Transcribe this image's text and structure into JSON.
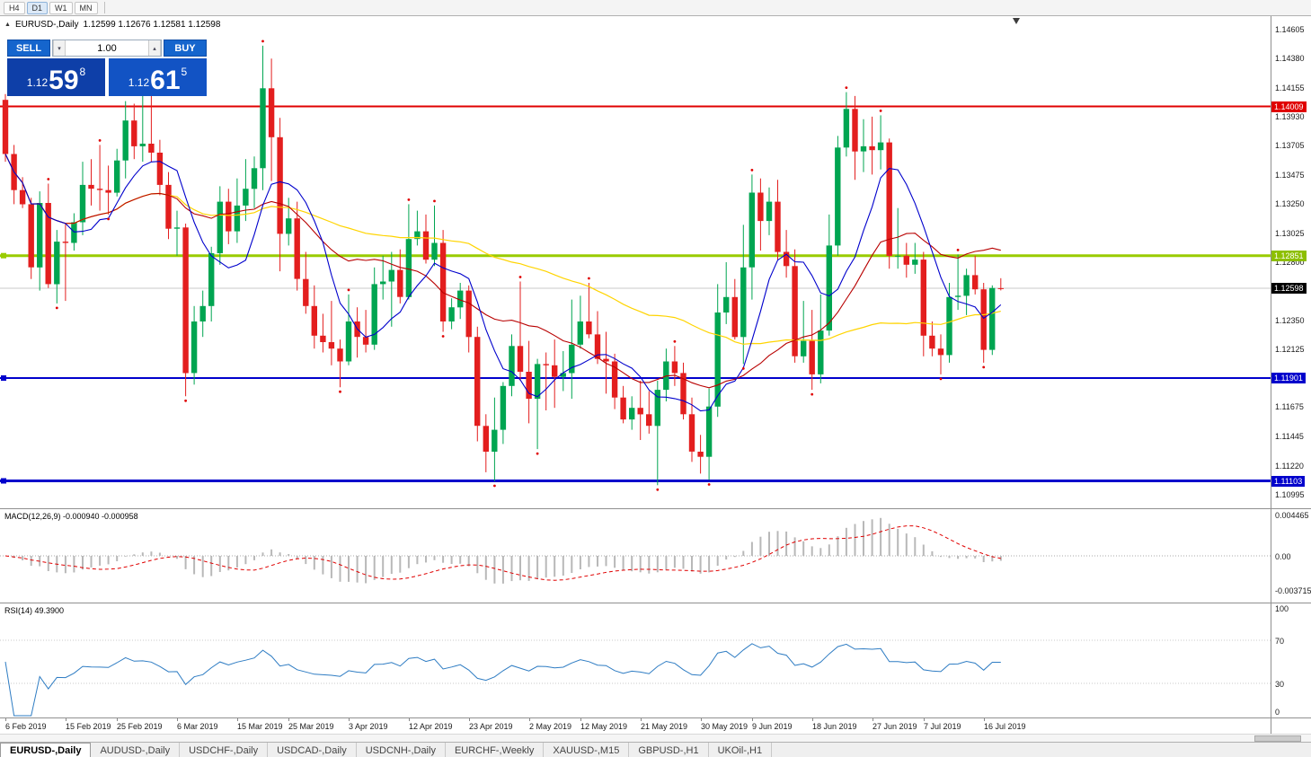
{
  "toolbar": {
    "timeframes": [
      "H4",
      "D1",
      "W1",
      "MN"
    ],
    "active_timeframe": "D1"
  },
  "chart_header": {
    "symbol_title": "EURUSD-,Daily",
    "ohlc": "1.12599 1.12676 1.12581 1.12598"
  },
  "trade_panel": {
    "sell_label": "SELL",
    "buy_label": "BUY",
    "volume": "1.00",
    "bid": {
      "big": "1.12",
      "pips": "59",
      "pt": "8"
    },
    "ask": {
      "big": "1.12",
      "pips": "61",
      "pt": "5"
    }
  },
  "chart": {
    "symbol": "EURUSD-",
    "timeframe": "Daily",
    "bull_color": "#00A551",
    "bear_color": "#E31E1E",
    "ma_fast_color": "#0000CC",
    "ma_mid_color": "#B80000",
    "ma_slow_color": "#FFD400",
    "fractal_color": "#E00000",
    "levels": [
      {
        "name": "resistance",
        "value": 1.14009,
        "label": "1.14009",
        "line_color": "#E00000",
        "tag_bg": "#E00000",
        "thickness": 2,
        "handle": false
      },
      {
        "name": "pivot-green",
        "value": 1.12851,
        "label": "1.12851",
        "line_color": "#99CC00",
        "tag_bg": "#8DBF00",
        "thickness": 3,
        "handle": true
      },
      {
        "name": "current-price",
        "value": 1.12598,
        "label": "1.12598",
        "line_color": "#C8C8C8",
        "tag_bg": "#000000",
        "thickness": 1,
        "handle": false
      },
      {
        "name": "support-1",
        "value": 1.11901,
        "label": "1.11901",
        "line_color": "#0000CC",
        "tag_bg": "#0000CC",
        "thickness": 2,
        "handle": true
      },
      {
        "name": "support-2",
        "value": 1.11103,
        "label": "1.11103",
        "line_color": "#0000CC",
        "tag_bg": "#0000CC",
        "thickness": 3,
        "handle": true
      }
    ],
    "y_ticks": [
      "1.14605",
      "1.14380",
      "1.14155",
      "1.13930",
      "1.13705",
      "1.13475",
      "1.13250",
      "1.13025",
      "1.12800",
      "1.12350",
      "1.12125",
      "1.11675",
      "1.11445",
      "1.11220",
      "1.10995"
    ],
    "candles": [
      [
        1.1406,
        1.14105,
        1.1358,
        1.1364
      ],
      [
        1.1364,
        1.1371,
        1.1325,
        1.1336
      ],
      [
        1.1336,
        1.1346,
        1.1322,
        1.1325
      ],
      [
        1.1325,
        1.133,
        1.1267,
        1.1276
      ],
      [
        1.1276,
        1.1335,
        1.1258,
        1.1326
      ],
      [
        1.1326,
        1.1341,
        1.126,
        1.1263
      ],
      [
        1.1263,
        1.1305,
        1.1248,
        1.1296
      ],
      [
        1.1296,
        1.131,
        1.125,
        1.1295
      ],
      [
        1.1295,
        1.1318,
        1.1289,
        1.1311
      ],
      [
        1.1311,
        1.1358,
        1.1301,
        1.134
      ],
      [
        1.134,
        1.136,
        1.1324,
        1.1337
      ],
      [
        1.1337,
        1.1371,
        1.132,
        1.1336
      ],
      [
        1.1336,
        1.1355,
        1.1317,
        1.1334
      ],
      [
        1.1334,
        1.1368,
        1.1331,
        1.1359
      ],
      [
        1.1359,
        1.1405,
        1.1345,
        1.139
      ],
      [
        1.139,
        1.1403,
        1.136,
        1.137
      ],
      [
        1.137,
        1.142,
        1.1358,
        1.1372
      ],
      [
        1.1372,
        1.141,
        1.1358,
        1.1365
      ],
      [
        1.1365,
        1.1375,
        1.1332,
        1.134
      ],
      [
        1.134,
        1.135,
        1.1298,
        1.1306
      ],
      [
        1.1306,
        1.132,
        1.1285,
        1.1307
      ],
      [
        1.1307,
        1.131,
        1.1176,
        1.1194
      ],
      [
        1.1194,
        1.1246,
        1.1185,
        1.1234
      ],
      [
        1.1234,
        1.1258,
        1.1222,
        1.1246
      ],
      [
        1.1246,
        1.1292,
        1.1234,
        1.1287
      ],
      [
        1.1287,
        1.1339,
        1.1278,
        1.1327
      ],
      [
        1.1327,
        1.1337,
        1.1294,
        1.1304
      ],
      [
        1.1304,
        1.1345,
        1.1295,
        1.1324
      ],
      [
        1.1324,
        1.136,
        1.1312,
        1.1337
      ],
      [
        1.1337,
        1.1362,
        1.1322,
        1.1353
      ],
      [
        1.1353,
        1.1448,
        1.1336,
        1.1415
      ],
      [
        1.1415,
        1.1438,
        1.1343,
        1.1377
      ],
      [
        1.1377,
        1.1392,
        1.1273,
        1.1302
      ],
      [
        1.1302,
        1.133,
        1.1293,
        1.1314
      ],
      [
        1.1314,
        1.1327,
        1.1258,
        1.1267
      ],
      [
        1.1267,
        1.1288,
        1.124,
        1.1246
      ],
      [
        1.1246,
        1.1262,
        1.1213,
        1.1223
      ],
      [
        1.1223,
        1.124,
        1.121,
        1.1218
      ],
      [
        1.1218,
        1.125,
        1.12,
        1.1213
      ],
      [
        1.1213,
        1.122,
        1.1183,
        1.1203
      ],
      [
        1.1203,
        1.1255,
        1.12,
        1.1234
      ],
      [
        1.1234,
        1.1245,
        1.1206,
        1.1222
      ],
      [
        1.1222,
        1.1243,
        1.121,
        1.1216
      ],
      [
        1.1216,
        1.1276,
        1.1212,
        1.1263
      ],
      [
        1.1263,
        1.1285,
        1.1251,
        1.1265
      ],
      [
        1.1265,
        1.1288,
        1.123,
        1.1274
      ],
      [
        1.1274,
        1.129,
        1.1248,
        1.1253
      ],
      [
        1.1253,
        1.1325,
        1.1251,
        1.1298
      ],
      [
        1.1298,
        1.132,
        1.1293,
        1.1304
      ],
      [
        1.1304,
        1.1317,
        1.1279,
        1.1282
      ],
      [
        1.1282,
        1.1324,
        1.1277,
        1.1295
      ],
      [
        1.1295,
        1.1305,
        1.1226,
        1.1234
      ],
      [
        1.1234,
        1.1252,
        1.1228,
        1.1245
      ],
      [
        1.1245,
        1.1264,
        1.1236,
        1.1258
      ],
      [
        1.1258,
        1.1262,
        1.121,
        1.1222
      ],
      [
        1.1222,
        1.123,
        1.1141,
        1.1153
      ],
      [
        1.1153,
        1.1162,
        1.1117,
        1.1133
      ],
      [
        1.1133,
        1.1175,
        1.111,
        1.115
      ],
      [
        1.115,
        1.1187,
        1.1139,
        1.1184
      ],
      [
        1.1184,
        1.1224,
        1.1176,
        1.1215
      ],
      [
        1.1215,
        1.1265,
        1.1188,
        1.1195
      ],
      [
        1.1195,
        1.1219,
        1.1155,
        1.1174
      ],
      [
        1.1174,
        1.1205,
        1.1135,
        1.1201
      ],
      [
        1.1201,
        1.121,
        1.1165,
        1.12
      ],
      [
        1.12,
        1.122,
        1.1167,
        1.1191
      ],
      [
        1.1191,
        1.1211,
        1.118,
        1.1194
      ],
      [
        1.1194,
        1.1251,
        1.1174,
        1.1216
      ],
      [
        1.1216,
        1.1254,
        1.1213,
        1.1234
      ],
      [
        1.1234,
        1.1264,
        1.1221,
        1.1224
      ],
      [
        1.1224,
        1.1242,
        1.1201,
        1.1205
      ],
      [
        1.1205,
        1.1226,
        1.1178,
        1.1203
      ],
      [
        1.1203,
        1.1209,
        1.1166,
        1.1175
      ],
      [
        1.1175,
        1.1184,
        1.1155,
        1.1158
      ],
      [
        1.1158,
        1.1176,
        1.115,
        1.1167
      ],
      [
        1.1167,
        1.1188,
        1.1142,
        1.1162
      ],
      [
        1.1162,
        1.118,
        1.1147,
        1.1153
      ],
      [
        1.1153,
        1.1188,
        1.1107,
        1.1181
      ],
      [
        1.1181,
        1.1213,
        1.1172,
        1.1203
      ],
      [
        1.1203,
        1.1215,
        1.1184,
        1.1194
      ],
      [
        1.1194,
        1.1202,
        1.1158,
        1.1162
      ],
      [
        1.1162,
        1.1175,
        1.1125,
        1.1133
      ],
      [
        1.1133,
        1.1146,
        1.1116,
        1.1129
      ],
      [
        1.1129,
        1.1182,
        1.1111,
        1.1168
      ],
      [
        1.1168,
        1.1263,
        1.116,
        1.1241
      ],
      [
        1.1241,
        1.128,
        1.1232,
        1.1253
      ],
      [
        1.1253,
        1.1267,
        1.122,
        1.1222
      ],
      [
        1.1222,
        1.1309,
        1.1201,
        1.1276
      ],
      [
        1.1276,
        1.1348,
        1.1251,
        1.1334
      ],
      [
        1.1334,
        1.1345,
        1.1289,
        1.1312
      ],
      [
        1.1312,
        1.1338,
        1.1301,
        1.1327
      ],
      [
        1.1327,
        1.1344,
        1.1282,
        1.1288
      ],
      [
        1.1288,
        1.1305,
        1.1268,
        1.1277
      ],
      [
        1.1277,
        1.129,
        1.1202,
        1.1207
      ],
      [
        1.1207,
        1.125,
        1.1202,
        1.1219
      ],
      [
        1.1219,
        1.1243,
        1.1181,
        1.1193
      ],
      [
        1.1193,
        1.1255,
        1.1186,
        1.1227
      ],
      [
        1.1227,
        1.1317,
        1.1223,
        1.1293
      ],
      [
        1.1293,
        1.1378,
        1.1285,
        1.1369
      ],
      [
        1.1369,
        1.1412,
        1.1362,
        1.1399
      ],
      [
        1.1399,
        1.1409,
        1.1344,
        1.1366
      ],
      [
        1.1366,
        1.1391,
        1.135,
        1.137
      ],
      [
        1.137,
        1.1393,
        1.1348,
        1.1367
      ],
      [
        1.1367,
        1.1394,
        1.1352,
        1.1373
      ],
      [
        1.1373,
        1.1376,
        1.1275,
        1.1285
      ],
      [
        1.1285,
        1.1322,
        1.1275,
        1.1285
      ],
      [
        1.1285,
        1.1295,
        1.1268,
        1.1278
      ],
      [
        1.1278,
        1.1295,
        1.1271,
        1.1282
      ],
      [
        1.1282,
        1.1288,
        1.1207,
        1.1223
      ],
      [
        1.1223,
        1.1234,
        1.1207,
        1.1213
      ],
      [
        1.1213,
        1.1224,
        1.1193,
        1.1208
      ],
      [
        1.1208,
        1.1264,
        1.1202,
        1.1253
      ],
      [
        1.1253,
        1.1286,
        1.1243,
        1.1254
      ],
      [
        1.1254,
        1.1275,
        1.1239,
        1.127
      ],
      [
        1.127,
        1.1285,
        1.1255,
        1.1259
      ],
      [
        1.1259,
        1.1264,
        1.1202,
        1.1212
      ],
      [
        1.1212,
        1.1262,
        1.1208,
        1.126
      ],
      [
        1.12599,
        1.12676,
        1.12581,
        1.12598
      ]
    ]
  },
  "macd": {
    "label": "MACD(12,26,9) -0.000940 -0.000958",
    "fast": 12,
    "slow": 26,
    "signal": 9,
    "axis_labels": [
      "0.004465",
      "0.00",
      "-0.003715"
    ],
    "hist_color": "#B8B8B8",
    "signal_color": "#E00000"
  },
  "rsi": {
    "label": "RSI(14) 49.3900",
    "period": 14,
    "levels": [
      "100",
      "70",
      "30",
      "0"
    ],
    "line_color": "#2E7CC3"
  },
  "date_axis": [
    {
      "label": "6 Feb 2019",
      "index": 0
    },
    {
      "label": "15 Feb 2019",
      "index": 7
    },
    {
      "label": "25 Feb 2019",
      "index": 13
    },
    {
      "label": "6 Mar 2019",
      "index": 20
    },
    {
      "label": "15 Mar 2019",
      "index": 27
    },
    {
      "label": "25 Mar 2019",
      "index": 33
    },
    {
      "label": "3 Apr 2019",
      "index": 40
    },
    {
      "label": "12 Apr 2019",
      "index": 47
    },
    {
      "label": "23 Apr 2019",
      "index": 54
    },
    {
      "label": "2 May 2019",
      "index": 61
    },
    {
      "label": "12 May 2019",
      "index": 67
    },
    {
      "label": "21 May 2019",
      "index": 74
    },
    {
      "label": "30 May 2019",
      "index": 81
    },
    {
      "label": "9 Jun 2019",
      "index": 87
    },
    {
      "label": "18 Jun 2019",
      "index": 94
    },
    {
      "label": "27 Jun 2019",
      "index": 101
    },
    {
      "label": "7 Jul 2019",
      "index": 107
    },
    {
      "label": "16 Jul 2019",
      "index": 114
    }
  ],
  "tabs": [
    {
      "label": "EURUSD-,Daily",
      "active": true
    },
    {
      "label": "AUDUSD-,Daily",
      "active": false
    },
    {
      "label": "USDCHF-,Daily",
      "active": false
    },
    {
      "label": "USDCAD-,Daily",
      "active": false
    },
    {
      "label": "USDCNH-,Daily",
      "active": false
    },
    {
      "label": "EURCHF-,Weekly",
      "active": false
    },
    {
      "label": "XAUUSD-,M15",
      "active": false
    },
    {
      "label": "GBPUSD-,H1",
      "active": false
    },
    {
      "label": "UKOil-,H1",
      "active": false
    }
  ]
}
